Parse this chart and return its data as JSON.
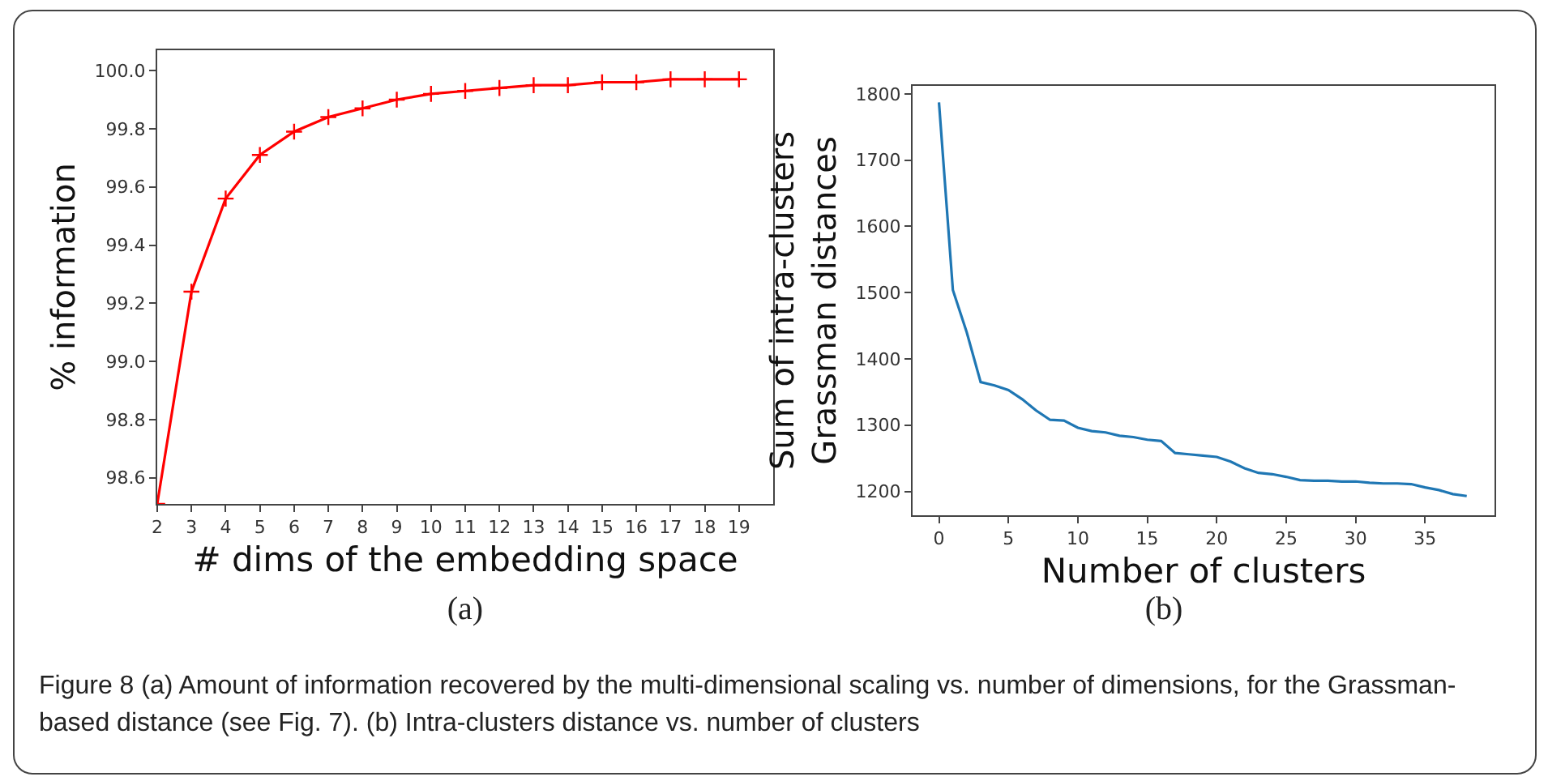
{
  "chart_data": [
    {
      "type": "line",
      "xlabel": "# dims of the embedding space",
      "ylabel": "% information",
      "marker": "cross",
      "annotations": [
        "(a)"
      ],
      "x": [
        2,
        3,
        4,
        5,
        6,
        7,
        8,
        9,
        10,
        11,
        12,
        13,
        14,
        15,
        16,
        17,
        18,
        19
      ],
      "series": [
        {
          "color": "#ff0000",
          "values": [
            98.51,
            99.24,
            99.56,
            99.71,
            99.79,
            99.84,
            99.87,
            99.9,
            99.92,
            99.93,
            99.94,
            99.95,
            99.95,
            99.96,
            99.96,
            99.97,
            99.97,
            99.97
          ]
        }
      ],
      "xlim": [
        2,
        20
      ],
      "xticks": [
        2,
        3,
        4,
        5,
        6,
        7,
        8,
        9,
        10,
        11,
        12,
        13,
        14,
        15,
        16,
        17,
        18,
        19
      ],
      "ylim": [
        98.51,
        100.07
      ],
      "yticks": [
        98.6,
        98.8,
        {
          "value": 99,
          "label": "99.0"
        },
        99.2,
        99.4,
        99.6,
        99.8,
        {
          "value": 100,
          "label": "100.0"
        }
      ]
    },
    {
      "type": "line",
      "xlabel": "Number of clusters",
      "ylabel": "Sum of intra-clusters\nGrassman distances",
      "annotations": [
        "(b)",
        "Figure 8  (a) Amount of information recovered by the multi-dimensional scaling vs. number of dimensions, for the Grassman-based distance (see Fig. 7). (b) Intra-clusters distance vs. number of clusters"
      ],
      "x": [
        0,
        1,
        2,
        3,
        4,
        5,
        6,
        7,
        8,
        9,
        10,
        11,
        12,
        13,
        14,
        15,
        16,
        17,
        18,
        19,
        20,
        21,
        22,
        23,
        24,
        25,
        26,
        27,
        28,
        29,
        30,
        31,
        32,
        33,
        34,
        35,
        36,
        37,
        38
      ],
      "series": [
        {
          "color": "#1f77b4",
          "values": [
            1787,
            1504,
            1440,
            1365,
            1360,
            1353,
            1339,
            1322,
            1308,
            1307,
            1296,
            1291,
            1289,
            1284,
            1282,
            1278,
            1276,
            1258,
            1256,
            1254,
            1252,
            1245,
            1235,
            1228,
            1226,
            1222,
            1217,
            1216,
            1216,
            1215,
            1215,
            1213,
            1212,
            1212,
            1211,
            1206,
            1202,
            1196,
            1193
          ]
        }
      ],
      "xlim": [
        -1.9,
        40
      ],
      "xticks": [
        0,
        5,
        10,
        15,
        20,
        25,
        30,
        35
      ],
      "ylim": [
        1164,
        1812
      ],
      "yticks": [
        1200,
        1300,
        1400,
        1500,
        1600,
        1700,
        1800
      ]
    }
  ]
}
